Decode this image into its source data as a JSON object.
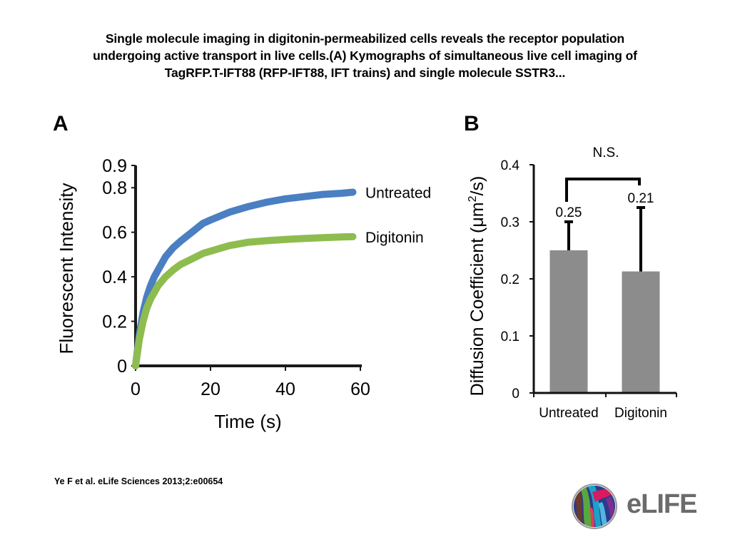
{
  "page": {
    "title": "Single molecule imaging in digitonin-permeabilized cells reveals the receptor population undergoing active transport in live cells.(A) Kymographs of simultaneous live cell imaging of TagRFP.T-IFT88 (RFP-IFT88, IFT trains) and single molecule SSTR3...",
    "title_lines": [
      "Single molecule imaging in digitonin-permeabilized cells reveals the receptor population",
      "undergoing active transport in live cells.(A) Kymographs of simultaneous live cell imaging of",
      "TagRFP.T-IFT88 (RFP-IFT88, IFT trains) and single molecule SSTR3..."
    ],
    "citation": "Ye F et al. eLife Sciences 2013;2:e00654",
    "logo_text": "eLIFE",
    "logo_icon": "elife-logo-icon"
  },
  "chart_data": [
    {
      "panel_label": "A",
      "type": "line",
      "title": "",
      "xlabel": "Time (s)",
      "ylabel": "Fluorescent Intensity",
      "xlim": [
        0,
        60
      ],
      "ylim": [
        0,
        0.9
      ],
      "xticks": [
        0,
        20,
        40,
        60
      ],
      "xtick_labels": [
        "0",
        "20",
        "40",
        "60"
      ],
      "yticks": [
        0,
        0.2,
        0.4,
        0.6,
        0.8,
        0.9
      ],
      "ytick_labels": [
        "0",
        "0.2",
        "0.4",
        "0.6",
        "0.8",
        "0.9"
      ],
      "grid": false,
      "legend": "inline-right",
      "x": [
        0,
        1,
        2,
        3,
        4,
        5,
        6,
        8,
        10,
        12,
        15,
        18,
        20,
        25,
        30,
        35,
        40,
        45,
        50,
        55,
        58
      ],
      "series": [
        {
          "name": "Untreated",
          "color": "#4a7fc1",
          "values": [
            0.0,
            0.14,
            0.24,
            0.31,
            0.36,
            0.4,
            0.43,
            0.49,
            0.53,
            0.56,
            0.6,
            0.64,
            0.655,
            0.69,
            0.715,
            0.735,
            0.75,
            0.76,
            0.77,
            0.775,
            0.78
          ]
        },
        {
          "name": "Digitonin",
          "color": "#8fbc4f",
          "values": [
            0.0,
            0.12,
            0.2,
            0.26,
            0.3,
            0.33,
            0.36,
            0.4,
            0.43,
            0.455,
            0.48,
            0.505,
            0.515,
            0.54,
            0.555,
            0.562,
            0.568,
            0.572,
            0.576,
            0.579,
            0.58
          ]
        }
      ]
    },
    {
      "panel_label": "B",
      "type": "bar",
      "title": "",
      "xlabel": "",
      "ylabel": "Diffusion Coefficient (μm²/s)",
      "ylabel_parts": {
        "main": "Diffusion Coefficient (μm",
        "sup": "2",
        "end": "/s)"
      },
      "categories": [
        "Untreated",
        "Digitonin"
      ],
      "values": [
        0.25,
        0.213
      ],
      "value_labels": [
        "0.25",
        "0.21"
      ],
      "error_upper": [
        0.3,
        0.325
      ],
      "bar_color": "#8c8c8c",
      "ylim": [
        0,
        0.4
      ],
      "yticks": [
        0,
        0.1,
        0.2,
        0.3,
        0.4
      ],
      "ytick_labels": [
        "0",
        "0.1",
        "0.2",
        "0.3",
        "0.4"
      ],
      "grid": false,
      "significance": {
        "label": "N.S.",
        "between": [
          "Untreated",
          "Digitonin"
        ],
        "bracket_y": 0.375
      }
    }
  ]
}
